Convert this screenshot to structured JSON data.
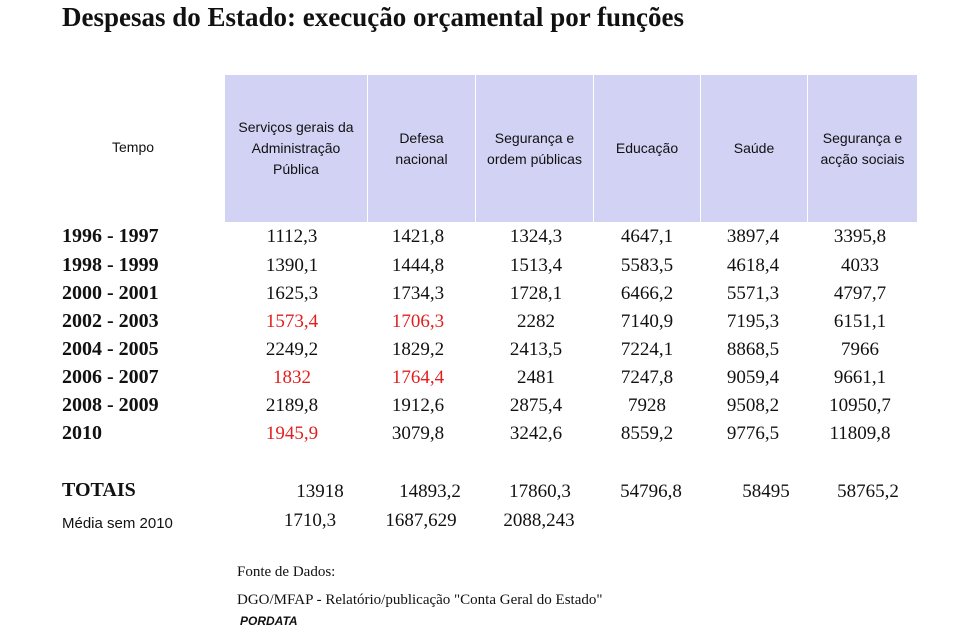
{
  "chart_data": {
    "type": "table",
    "title": "Despesas do Estado: execução orçamental por funções",
    "row_header": "Tempo",
    "columns": [
      "Serviços gerais da Administração Pública",
      "Defesa nacional",
      "Segurança e ordem públicas",
      "Educação",
      "Saúde",
      "Segurança e acção sociais"
    ],
    "rows": [
      {
        "label": "1996 - 1997",
        "values": [
          "1112,3",
          "1421,8",
          "1324,3",
          "4647,1",
          "3897,4",
          "3395,8"
        ],
        "highlight": [
          false,
          false,
          false,
          false,
          false,
          false
        ]
      },
      {
        "label": "1998 - 1999",
        "values": [
          "1390,1",
          "1444,8",
          "1513,4",
          "5583,5",
          "4618,4",
          "4033"
        ],
        "highlight": [
          false,
          false,
          false,
          false,
          false,
          false
        ]
      },
      {
        "label": "2000 - 2001",
        "values": [
          "1625,3",
          "1734,3",
          "1728,1",
          "6466,2",
          "5571,3",
          "4797,7"
        ],
        "highlight": [
          false,
          false,
          false,
          false,
          false,
          false
        ]
      },
      {
        "label": "2002 - 2003",
        "values": [
          "1573,4",
          "1706,3",
          "2282",
          "7140,9",
          "7195,3",
          "6151,1"
        ],
        "highlight": [
          true,
          true,
          false,
          false,
          false,
          false
        ]
      },
      {
        "label": "2004 - 2005",
        "values": [
          "2249,2",
          "1829,2",
          "2413,5",
          "7224,1",
          "8868,5",
          "7966"
        ],
        "highlight": [
          false,
          false,
          false,
          false,
          false,
          false
        ]
      },
      {
        "label": "2006 - 2007",
        "values": [
          "1832",
          "1764,4",
          "2481",
          "7247,8",
          "9059,4",
          "9661,1"
        ],
        "highlight": [
          true,
          true,
          false,
          false,
          false,
          false
        ]
      },
      {
        "label": "2008 - 2009",
        "values": [
          "2189,8",
          "1912,6",
          "2875,4",
          "7928",
          "9508,2",
          "10950,7"
        ],
        "highlight": [
          false,
          false,
          false,
          false,
          false,
          false
        ]
      },
      {
        "label": "2010",
        "values": [
          "1945,9",
          "3079,8",
          "3242,6",
          "8559,2",
          "9776,5",
          "11809,8"
        ],
        "highlight": [
          true,
          false,
          false,
          false,
          false,
          false
        ]
      }
    ],
    "totals": {
      "label": "TOTAIS",
      "values": [
        "13918",
        "14893,2",
        "17860,3",
        "54796,8",
        "58495",
        "58765,2"
      ]
    },
    "average": {
      "label": "Média sem 2010",
      "values": [
        "1710,3",
        "1687,629",
        "2088,243"
      ]
    },
    "source_label": "Fonte de Dados:",
    "source": "DGO/MFAP - Relatório/publicação \"Conta Geral do Estado\"",
    "brand": "PORDATA"
  },
  "colors": {
    "header_band": "#d2d2f4",
    "highlight": "#e01f1f"
  }
}
